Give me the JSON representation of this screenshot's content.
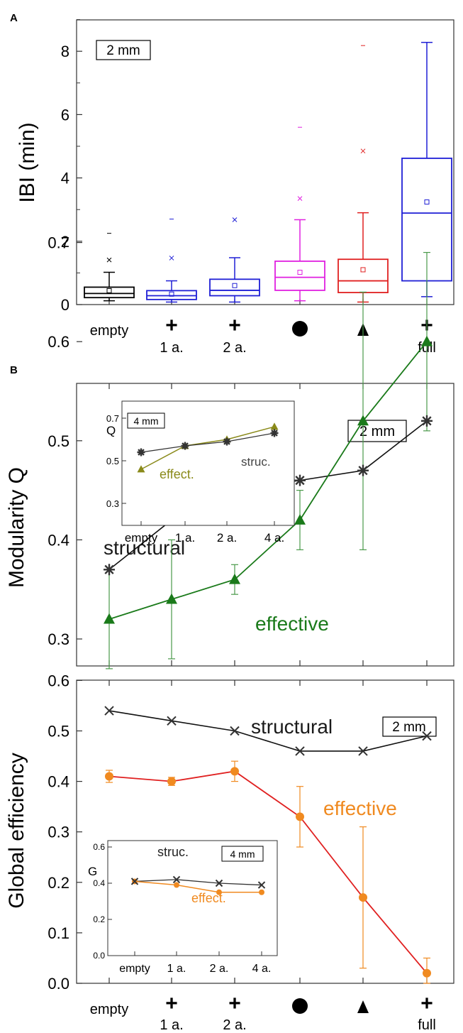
{
  "panels": {
    "a": {
      "label": "A",
      "ylabel": "IBI (min)",
      "note": "2 mm"
    },
    "b": {
      "label": "B",
      "ylabel": "Modularity Q",
      "note": "2 mm",
      "structural_label": "structural",
      "effective_label": "effective",
      "inset": {
        "ylabel": "Q",
        "note": "4 mm",
        "effective_label": "effect.",
        "structural_label": "struc."
      }
    },
    "c": {
      "ylabel": "Global efficiency",
      "note": "2 mm",
      "structural_label": "structural",
      "effective_label": "effective",
      "inset": {
        "ylabel": "G",
        "note": "4 mm",
        "structural_label": "struc.",
        "effective_label": "effect."
      }
    }
  },
  "x_categories": [
    {
      "top": "empty",
      "bottom": ""
    },
    {
      "top": "+",
      "bottom": "1 a."
    },
    {
      "top": "+",
      "bottom": "2 a."
    },
    {
      "top": "●",
      "bottom": ""
    },
    {
      "top": "▲",
      "bottom": ""
    },
    {
      "top": "+",
      "bottom": "full"
    }
  ],
  "inset_categories": [
    "empty",
    "1 a.",
    "2 a.",
    "4 a."
  ],
  "colors": {
    "box": [
      "#000000",
      "#1f1fd6",
      "#1f1fd6",
      "#e020e0",
      "#e02020",
      "#1f1fd6"
    ],
    "structural": "#1a1a1a",
    "effective_q": "#1a7a1a",
    "effective_q_inset": "#8a8a1a",
    "effective_g": "#f08a20",
    "effective_g_line": "#e02020"
  },
  "chart_data": [
    {
      "type": "box",
      "panel": "A",
      "ylabel": "IBI (min)",
      "ylim": [
        0,
        9
      ],
      "yticks": [
        0,
        2,
        4,
        6,
        8
      ],
      "boxes": [
        {
          "whisker_low": 0.12,
          "q1": 0.22,
          "median": 0.35,
          "q3": 0.55,
          "whisker_high": 1.02,
          "mean": 0.44,
          "outlier_x": 1.41,
          "outlier_dash": 2.25
        },
        {
          "whisker_low": 0.08,
          "q1": 0.16,
          "median": 0.28,
          "q3": 0.44,
          "whisker_high": 0.75,
          "mean": 0.33,
          "outlier_x": 1.47,
          "outlier_dash": 2.7
        },
        {
          "whisker_low": 0.08,
          "q1": 0.28,
          "median": 0.45,
          "q3": 0.8,
          "whisker_high": 1.48,
          "mean": 0.6,
          "outlier_x": 2.68,
          "outlier_dash": null
        },
        {
          "whisker_low": 0.12,
          "q1": 0.45,
          "median": 0.86,
          "q3": 1.37,
          "whisker_high": 2.68,
          "mean": 1.02,
          "outlier_x": 3.35,
          "outlier_dash": 5.6
        },
        {
          "whisker_low": 0.08,
          "q1": 0.38,
          "median": 0.75,
          "q3": 1.43,
          "whisker_high": 2.9,
          "mean": 1.1,
          "outlier_x": 4.85,
          "outlier_dash": 8.18
        },
        {
          "whisker_low": 0.25,
          "q1": 0.75,
          "median": 2.89,
          "q3": 4.62,
          "whisker_high": 8.28,
          "mean": 3.24,
          "outlier_x": null,
          "outlier_dash": null
        }
      ]
    },
    {
      "type": "line",
      "panel": "B",
      "ylabel": "Modularity Q",
      "ylim": [
        0.25,
        0.75
      ],
      "yticks": [
        0.3,
        0.4,
        0.5,
        0.6,
        0.7
      ],
      "series": [
        {
          "name": "structural",
          "values": [
            0.37,
            0.42,
            0.45,
            0.46,
            0.47,
            0.52
          ]
        },
        {
          "name": "effective",
          "values": [
            0.32,
            0.34,
            0.36,
            0.42,
            0.52,
            0.6
          ],
          "errors": [
            0.05,
            0.06,
            0.015,
            0.03,
            0.13,
            0.09
          ]
        }
      ]
    },
    {
      "type": "line",
      "panel": "B-inset",
      "ylabel": "Q",
      "ylim": [
        0.2,
        0.75
      ],
      "yticks": [
        0.3,
        0.5,
        0.7
      ],
      "series": [
        {
          "name": "struc.",
          "values": [
            0.54,
            0.57,
            0.59,
            0.63
          ]
        },
        {
          "name": "effect.",
          "values": [
            0.46,
            0.57,
            0.6,
            0.66
          ]
        }
      ]
    },
    {
      "type": "line",
      "panel": "C",
      "ylabel": "Global efficiency",
      "ylim": [
        0,
        0.6
      ],
      "yticks": [
        0.0,
        0.1,
        0.2,
        0.3,
        0.4,
        0.5,
        0.6
      ],
      "series": [
        {
          "name": "structural",
          "values": [
            0.54,
            0.52,
            0.5,
            0.46,
            0.46,
            0.49
          ]
        },
        {
          "name": "effective",
          "values": [
            0.41,
            0.4,
            0.42,
            0.33,
            0.17,
            0.02
          ],
          "errors": [
            0.012,
            0.008,
            0.02,
            0.06,
            0.14,
            0.03
          ]
        }
      ]
    },
    {
      "type": "line",
      "panel": "C-inset",
      "ylabel": "G",
      "ylim": [
        0,
        0.6
      ],
      "yticks": [
        0.0,
        0.2,
        0.4,
        0.6
      ],
      "series": [
        {
          "name": "struc.",
          "values": [
            0.41,
            0.42,
            0.4,
            0.39
          ]
        },
        {
          "name": "effect.",
          "values": [
            0.41,
            0.39,
            0.35,
            0.35
          ]
        }
      ]
    }
  ]
}
